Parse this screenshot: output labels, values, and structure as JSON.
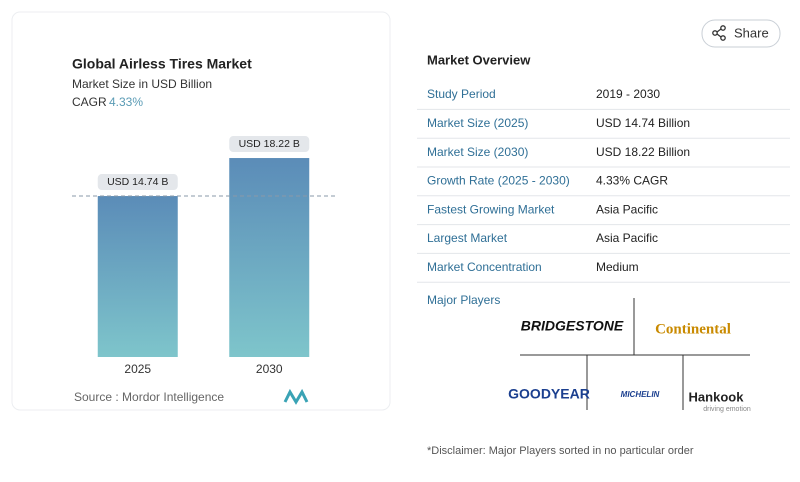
{
  "chart_data": {
    "type": "bar",
    "title": "Global Airless Tires Market",
    "subtitle": "Market Size in USD Billion",
    "cagr_label": "CAGR",
    "cagr_value": "4.33%",
    "categories": [
      "2025",
      "2030"
    ],
    "values": [
      14.74,
      18.22
    ],
    "value_labels": [
      "USD 14.74 B",
      "USD 18.22 B"
    ],
    "ylim": [
      0,
      20
    ],
    "reference_line": true,
    "source": "Source :  Mordor Intelligence"
  },
  "share": "Share",
  "overview": {
    "title": "Market Overview",
    "rows": [
      [
        "Study Period",
        "2019 - 2030"
      ],
      [
        "Market Size (2025)",
        "USD 14.74 Billion"
      ],
      [
        "Market Size (2030)",
        "USD 18.22 Billion"
      ],
      [
        "Growth Rate (2025 - 2030)",
        "4.33% CAGR"
      ],
      [
        "Fastest Growing Market",
        "Asia Pacific"
      ],
      [
        "Largest Market",
        "Asia Pacific"
      ],
      [
        "Market Concentration",
        "Medium"
      ]
    ]
  },
  "players": {
    "title": "Major Players",
    "logos": [
      "BRIDGESTONE",
      "Continental",
      "GOODYEAR",
      "MICHELIN",
      "Hankook",
      "driving emotion"
    ]
  },
  "disclaimer": "*Disclaimer: Major Players sorted in no particular order"
}
